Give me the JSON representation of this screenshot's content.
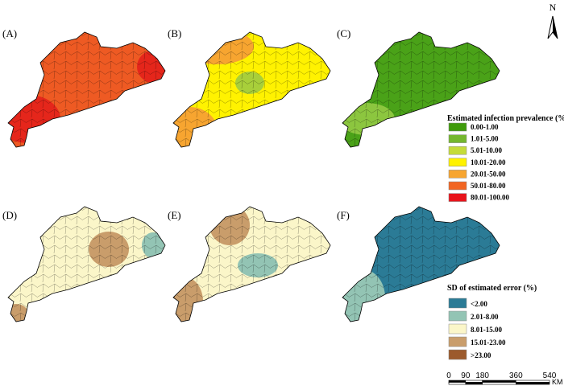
{
  "panels": [
    {
      "label": "(A)"
    },
    {
      "label": "(B)"
    },
    {
      "label": "(C)"
    },
    {
      "label": "(D)"
    },
    {
      "label": "(E)"
    },
    {
      "label": "(F)"
    }
  ],
  "legend_prevalence": {
    "title": "Estimated infection prevalence (%)",
    "items": [
      {
        "label": "0.00-1.00",
        "color": "#3f9b0b"
      },
      {
        "label": "1.01-5.00",
        "color": "#74b72e"
      },
      {
        "label": "5.01-10.00",
        "color": "#c5dc3a"
      },
      {
        "label": "10.01-20.00",
        "color": "#fff200"
      },
      {
        "label": "20.01-50.00",
        "color": "#f7a530"
      },
      {
        "label": "50.01-80.00",
        "color": "#f26522"
      },
      {
        "label": "80.01-100.00",
        "color": "#e8131b"
      }
    ]
  },
  "legend_sd": {
    "title": "SD of estimated error (%)",
    "items": [
      {
        "label": "<2.00",
        "color": "#2b7b96"
      },
      {
        "label": "2.01-8.00",
        "color": "#93c4b4"
      },
      {
        "label": "8.01-15.00",
        "color": "#fbf6c9"
      },
      {
        "label": "15.01-23.00",
        "color": "#c99d6b"
      },
      {
        "label": ">23.00",
        "color": "#9c5a2c"
      }
    ]
  },
  "scale_bar": {
    "ticks": [
      0,
      90,
      180,
      360,
      540
    ],
    "unit": "KM"
  },
  "north": "N"
}
